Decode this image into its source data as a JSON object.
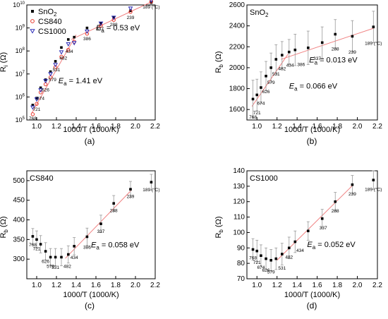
{
  "chart_data": [
    {
      "type": "scatter",
      "panel_label": "(a)",
      "ylabel_main": "R",
      "ylabel_sub": "i",
      "ylabel_unit": " (Ω)",
      "xlabel": "1000/T (1000/K)",
      "xlim": [
        0.9,
        2.2
      ],
      "ylim": [
        5,
        10
      ],
      "yscale": "log",
      "x_ticks": [
        1.0,
        1.2,
        1.4,
        1.6,
        1.8,
        2.0,
        2.2
      ],
      "y_ticks": [
        5,
        6,
        7,
        8,
        9,
        10
      ],
      "legend": {
        "placement": "top-left",
        "entries": [
          "SnO2",
          "CS840",
          "CS1000"
        ]
      },
      "series": [
        {
          "name": "SnO2",
          "marker": "square",
          "color": "#000000",
          "x": [
            0.96,
            1.0,
            1.04,
            1.09,
            1.14,
            1.19,
            1.25,
            1.32,
            1.38,
            1.51,
            1.65,
            1.78,
            1.95,
            2.16
          ],
          "y": [
            5.65,
            5.95,
            6.4,
            6.75,
            7.1,
            7.55,
            8.15,
            8.5,
            8.6,
            9.0,
            9.2,
            9.45,
            9.75,
            10.1
          ]
        },
        {
          "name": "CS840",
          "marker": "circle",
          "color": "#e8382c",
          "x": [
            0.96,
            1.0,
            1.04,
            1.09,
            1.14,
            1.19,
            1.25,
            1.32,
            1.38,
            1.51,
            1.65,
            1.78,
            1.95,
            2.16
          ],
          "y": [
            5.25,
            5.7,
            6.2,
            6.55,
            6.85,
            7.3,
            7.75,
            8.05,
            8.4,
            8.75,
            9.1,
            9.35,
            9.7,
            10.15
          ]
        },
        {
          "name": "CS1000",
          "marker": "triangle-down",
          "color": "#2e2eb8",
          "x": [
            0.96,
            1.0,
            1.04,
            1.09,
            1.14,
            1.19,
            1.25,
            1.32,
            1.38,
            1.51,
            1.65,
            1.78,
            1.95,
            2.16
          ],
          "y": [
            5.55,
            5.9,
            6.3,
            6.7,
            7.0,
            7.4,
            7.95,
            8.3,
            8.35,
            8.85,
            9.2,
            9.45,
            9.85,
            10.2
          ]
        }
      ],
      "fit_lines": [
        {
          "x": [
            0.95,
            1.4
          ],
          "y": [
            5.3,
            8.7
          ],
          "label_prefix": "E",
          "label_sub": "a",
          "label_value": " = 1.41 eV"
        },
        {
          "x": [
            1.35,
            2.17
          ],
          "y": [
            8.5,
            10.15
          ],
          "label_prefix": "E",
          "label_sub": "a",
          "label_value": " = 0.53 eV"
        }
      ],
      "temperature_labels": [
        {
          "text": "768",
          "x": 0.96,
          "y": 5.0
        },
        {
          "text": "721",
          "x": 1.0,
          "y": 5.4
        },
        {
          "text": "674",
          "x": 1.04,
          "y": 5.88
        },
        {
          "text": "626",
          "x": 1.09,
          "y": 6.24
        },
        {
          "text": "579",
          "x": 1.16,
          "y": 6.68
        },
        {
          "text": "531",
          "x": 1.2,
          "y": 7.12
        },
        {
          "text": "482",
          "x": 1.27,
          "y": 7.62
        },
        {
          "text": "434",
          "x": 1.33,
          "y": 7.92
        },
        {
          "text": "386",
          "x": 1.51,
          "y": 8.46
        },
        {
          "text": "337",
          "x": 1.64,
          "y": 8.9
        },
        {
          "text": "288",
          "x": 1.78,
          "y": 9.08
        },
        {
          "text": "239",
          "x": 1.95,
          "y": 9.38
        },
        {
          "text": "189 (°C)",
          "x": 2.16,
          "y": 9.84
        }
      ]
    },
    {
      "type": "scatter",
      "panel_label": "(b)",
      "inset_title": "SnO2",
      "ylabel_main": "R",
      "ylabel_sub": "b",
      "ylabel_unit": " (Ω)",
      "xlabel": "1000/T (1000/K)",
      "xlim": [
        0.9,
        2.2
      ],
      "ylim": [
        1500,
        2600
      ],
      "x_ticks": [
        1.0,
        1.2,
        1.4,
        1.6,
        1.8,
        2.0,
        2.2
      ],
      "y_ticks": [
        1600,
        1800,
        2000,
        2200,
        2400,
        2600
      ],
      "series": [
        {
          "name": "SnO2",
          "marker": "square",
          "color": "#000000",
          "x": [
            0.96,
            1.0,
            1.04,
            1.09,
            1.14,
            1.19,
            1.25,
            1.32,
            1.38,
            1.51,
            1.65,
            1.78,
            1.95,
            2.16
          ],
          "y": [
            1700,
            1740,
            1810,
            1920,
            2000,
            2080,
            2120,
            2150,
            2170,
            2190,
            2240,
            2320,
            2300,
            2390
          ],
          "err": [
            180,
            150,
            150,
            140,
            140,
            140,
            130,
            120,
            150,
            160,
            150,
            140,
            150,
            150
          ]
        }
      ],
      "fit_lines": [
        {
          "x": [
            0.95,
            1.31
          ],
          "y": [
            1630,
            2130
          ],
          "label_prefix": "E",
          "label_sub": "a",
          "label_value": " = 0.066 eV"
        },
        {
          "x": [
            1.24,
            2.17
          ],
          "y": [
            2080,
            2380
          ],
          "label_prefix": "E",
          "label_sub": "a",
          "label_value": " = 0.013 eV"
        }
      ],
      "temperature_labels": [
        {
          "text": "768",
          "x": 0.96,
          "y": 1515
        },
        {
          "text": "721",
          "x": 1.0,
          "y": 1555
        },
        {
          "text": "674",
          "x": 1.04,
          "y": 1645
        },
        {
          "text": "626",
          "x": 1.09,
          "y": 1755
        },
        {
          "text": "579",
          "x": 1.14,
          "y": 1845
        },
        {
          "text": "531",
          "x": 1.19,
          "y": 1925
        },
        {
          "text": "482",
          "x": 1.25,
          "y": 1975
        },
        {
          "text": "434",
          "x": 1.33,
          "y": 2010
        },
        {
          "text": "386",
          "x": 1.44,
          "y": 2015
        },
        {
          "text": "337",
          "x": 1.6,
          "y": 2075
        },
        {
          "text": "288",
          "x": 1.78,
          "y": 2165
        },
        {
          "text": "239",
          "x": 1.95,
          "y": 2135
        },
        {
          "text": "189 (°C)",
          "x": 2.16,
          "y": 2220
        }
      ]
    },
    {
      "type": "scatter",
      "panel_label": "(c)",
      "inset_title": "CS840",
      "ylabel_main": "R",
      "ylabel_sub": "b",
      "ylabel_unit": " (Ω)",
      "xlabel": "1000/T (1000/K)",
      "xlim": [
        0.9,
        2.2
      ],
      "ylim": [
        250,
        525
      ],
      "x_ticks": [
        1.0,
        1.2,
        1.4,
        1.6,
        1.8,
        2.0,
        2.2
      ],
      "y_ticks": [
        300,
        350,
        400,
        450,
        500
      ],
      "series": [
        {
          "name": "CS840",
          "marker": "square",
          "color": "#000000",
          "x": [
            0.96,
            1.0,
            1.04,
            1.09,
            1.14,
            1.19,
            1.25,
            1.32,
            1.38,
            1.51,
            1.65,
            1.78,
            1.95,
            2.16
          ],
          "y": [
            358,
            350,
            338,
            320,
            305,
            305,
            305,
            312,
            333,
            357,
            390,
            442,
            478,
            496
          ],
          "err": [
            20,
            22,
            22,
            22,
            22,
            22,
            22,
            22,
            22,
            22,
            22,
            20,
            20,
            20
          ]
        }
      ],
      "fit_lines": [
        {
          "x": [
            1.29,
            1.96
          ],
          "y": [
            302,
            476
          ],
          "label_prefix": "E",
          "label_sub": "a",
          "label_value": " = 0.058 eV"
        }
      ],
      "temperature_labels": [
        {
          "text": "768",
          "x": 0.96,
          "y": 333
        },
        {
          "text": "721",
          "x": 1.0,
          "y": 323
        },
        {
          "text": "626",
          "x": 1.09,
          "y": 290
        },
        {
          "text": "579",
          "x": 1.14,
          "y": 278
        },
        {
          "text": "531",
          "x": 1.19,
          "y": 275
        },
        {
          "text": "482",
          "x": 1.31,
          "y": 278
        },
        {
          "text": "434",
          "x": 1.38,
          "y": 300
        },
        {
          "text": "386",
          "x": 1.51,
          "y": 326
        },
        {
          "text": "337",
          "x": 1.65,
          "y": 367
        },
        {
          "text": "288",
          "x": 1.78,
          "y": 420
        },
        {
          "text": "239",
          "x": 1.95,
          "y": 456
        },
        {
          "text": "189 (°C)",
          "x": 2.16,
          "y": 473
        }
      ]
    },
    {
      "type": "scatter",
      "panel_label": "(d)",
      "inset_title": "CS1000",
      "ylabel_main": "R",
      "ylabel_sub": "b",
      "ylabel_unit": " (Ω)",
      "xlabel": "1000/T (1000/K)",
      "xlim": [
        0.9,
        2.2
      ],
      "ylim": [
        70,
        140
      ],
      "x_ticks": [
        1.0,
        1.2,
        1.4,
        1.6,
        1.8,
        2.0,
        2.2
      ],
      "y_ticks": [
        70,
        80,
        90,
        100,
        110,
        120,
        130,
        140
      ],
      "series": [
        {
          "name": "CS1000",
          "marker": "square",
          "color": "#000000",
          "x": [
            0.96,
            1.0,
            1.04,
            1.09,
            1.14,
            1.19,
            1.25,
            1.32,
            1.38,
            1.51,
            1.65,
            1.78,
            1.95,
            2.16
          ],
          "y": [
            89,
            88,
            85,
            83,
            82,
            83,
            86,
            90,
            94,
            101,
            109,
            120,
            131,
            134
          ],
          "err": [
            7,
            7,
            7,
            7,
            7,
            7,
            7,
            7,
            7,
            6,
            6,
            6,
            6,
            6
          ]
        }
      ],
      "fit_lines": [
        {
          "x": [
            1.2,
            1.96
          ],
          "y": [
            82,
            131
          ],
          "label_prefix": "E",
          "label_sub": "a",
          "label_value": " = 0.052 eV"
        }
      ],
      "temperature_labels": [
        {
          "text": "768",
          "x": 0.96,
          "y": 82.5
        },
        {
          "text": "721",
          "x": 1.0,
          "y": 79.5
        },
        {
          "text": "674",
          "x": 1.04,
          "y": 76.5
        },
        {
          "text": "626",
          "x": 1.09,
          "y": 74.5
        },
        {
          "text": "579",
          "x": 1.14,
          "y": 73.5
        },
        {
          "text": "531",
          "x": 1.25,
          "y": 76
        },
        {
          "text": "482",
          "x": 1.32,
          "y": 83
        },
        {
          "text": "434",
          "x": 1.43,
          "y": 87.5
        },
        {
          "text": "337",
          "x": 1.66,
          "y": 102
        },
        {
          "text": "288",
          "x": 1.78,
          "y": 113
        },
        {
          "text": "239",
          "x": 1.95,
          "y": 124
        },
        {
          "text": "189 (°C)",
          "x": 2.16,
          "y": 127
        }
      ]
    }
  ],
  "style": {
    "fit_color": "#f08080",
    "error_color": "#999999",
    "marker_color": "#000000"
  }
}
